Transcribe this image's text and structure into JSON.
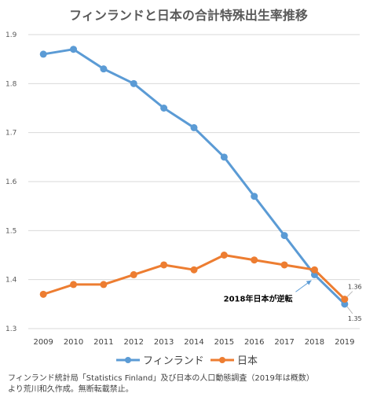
{
  "chart_data": {
    "type": "line",
    "title": "フィンランドと日本の合計特殊出生率推移",
    "x": [
      "2009",
      "2010",
      "2011",
      "2012",
      "2013",
      "2014",
      "2015",
      "2016",
      "2017",
      "2018",
      "2019"
    ],
    "series": [
      {
        "name": "フィンランド",
        "color": "#5b9bd5",
        "values": [
          1.86,
          1.87,
          1.83,
          1.8,
          1.75,
          1.71,
          1.65,
          1.57,
          1.49,
          1.41,
          1.35
        ]
      },
      {
        "name": "日本",
        "color": "#ed7d31",
        "values": [
          1.37,
          1.39,
          1.39,
          1.41,
          1.43,
          1.42,
          1.45,
          1.44,
          1.43,
          1.42,
          1.36
        ]
      }
    ],
    "ylim": [
      1.3,
      1.9
    ],
    "yticks": [
      "1.3",
      "1.4",
      "1.5",
      "1.6",
      "1.7",
      "1.8",
      "1.9"
    ],
    "grid": true,
    "legend_position": "bottom",
    "annotation": {
      "text": "2018年日本が逆転",
      "x": "2018"
    },
    "end_labels": {
      "japan": "1.36",
      "finland": "1.35"
    },
    "source_lines": [
      "フィンランド統計局「Statistics Finland」及び日本の人口動態調査（2019年は概数）",
      "より荒川和久作成。無断転載禁止。"
    ]
  }
}
